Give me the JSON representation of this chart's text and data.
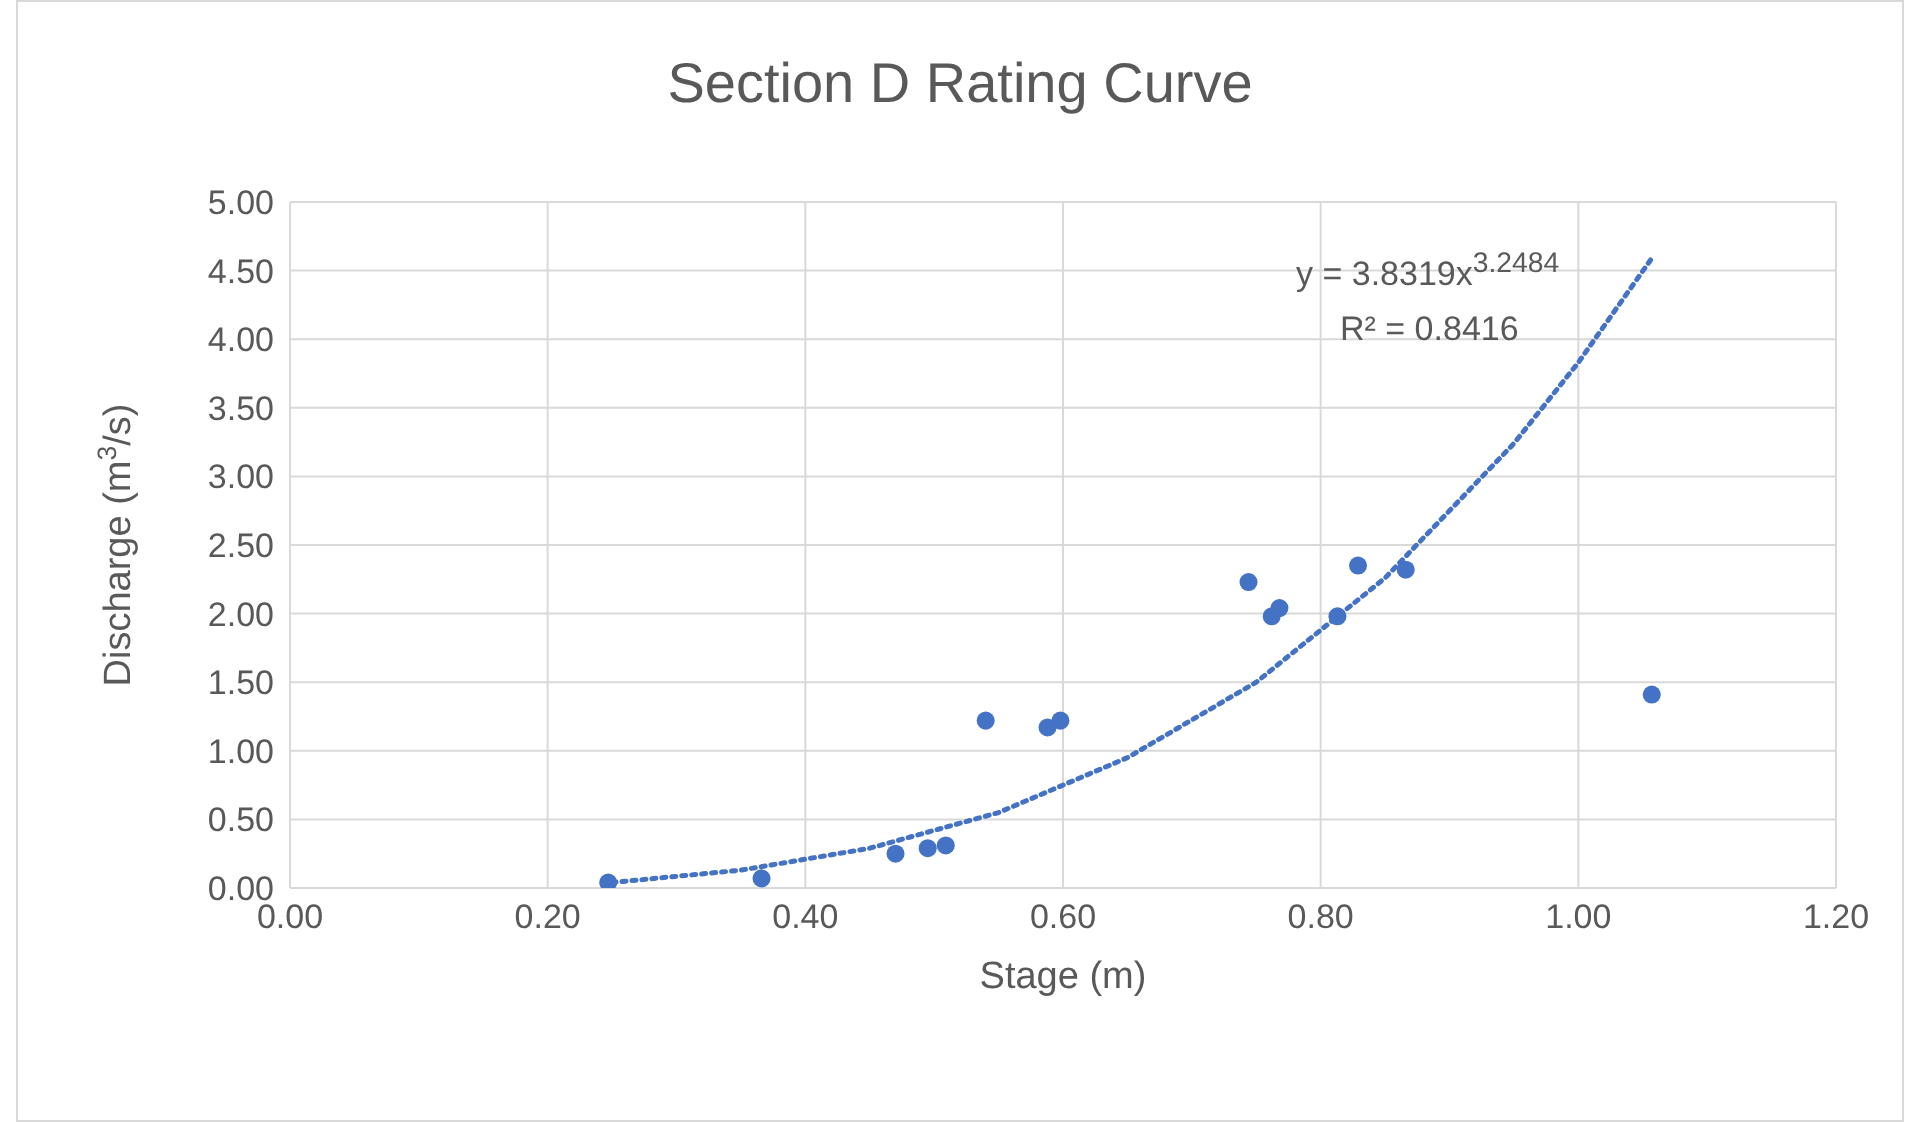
{
  "chart_data": {
    "type": "scatter",
    "title": "Section D Rating Curve",
    "xlabel": "Stage (m)",
    "ylabel": "Discharge (m$^{3}$/s)",
    "x": [
      0.247,
      0.366,
      0.47,
      0.495,
      0.509,
      0.54,
      0.588,
      0.598,
      0.744,
      0.762,
      0.768,
      0.813,
      0.829,
      0.866,
      1.057
    ],
    "series": [
      {
        "type": "scatter",
        "color": "#4472c4",
        "values": [
          0.04,
          0.07,
          0.25,
          0.29,
          0.31,
          1.22,
          1.17,
          1.22,
          2.23,
          1.98,
          2.04,
          1.98,
          2.35,
          2.32,
          1.41
        ]
      },
      {
        "type": "line",
        "color": "#4472c4",
        "line_style": "dotted",
        "marker": "none",
        "x": [
          0.25,
          0.35,
          0.45,
          0.55,
          0.65,
          0.75,
          0.85,
          0.95,
          1.0,
          1.057
        ],
        "values": [
          0.04,
          0.13,
          0.29,
          0.55,
          0.95,
          1.5,
          2.26,
          3.24,
          3.83,
          4.59
        ]
      }
    ],
    "xlim": [
      0,
      1.2
    ],
    "xticks": [
      {
        "value": 0,
        "label": "0.00"
      },
      {
        "value": 0.2,
        "label": "0.20"
      },
      {
        "value": 0.4,
        "label": "0.40"
      },
      {
        "value": 0.6,
        "label": "0.60"
      },
      {
        "value": 0.8,
        "label": "0.80"
      },
      {
        "value": 1,
        "label": "1.00"
      },
      {
        "value": 1.2,
        "label": "1.20"
      }
    ],
    "ylim": [
      0,
      5
    ],
    "yticks": [
      {
        "value": 0,
        "label": "0.00"
      },
      {
        "value": 0.5,
        "label": "0.50"
      },
      {
        "value": 1,
        "label": "1.00"
      },
      {
        "value": 1.5,
        "label": "1.50"
      },
      {
        "value": 2,
        "label": "2.00"
      },
      {
        "value": 2.5,
        "label": "2.50"
      },
      {
        "value": 3,
        "label": "3.00"
      },
      {
        "value": 3.5,
        "label": "3.50"
      },
      {
        "value": 4,
        "label": "4.00"
      },
      {
        "value": 4.5,
        "label": "4.50"
      },
      {
        "value": 5,
        "label": "5.00"
      }
    ],
    "grid": true,
    "marker": "circle",
    "annotations": [
      "y = 3.8319x$^{3.2484}$",
      "R² = 0.8416"
    ]
  }
}
